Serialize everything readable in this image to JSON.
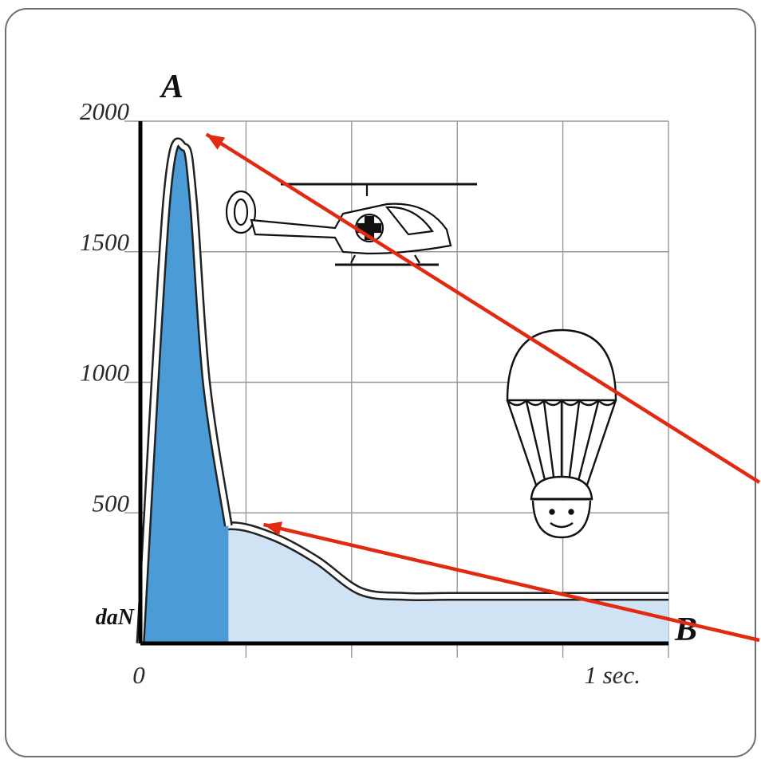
{
  "chart_data": {
    "type": "area",
    "x_unit": "sec.",
    "y_unit": "daN",
    "ylim": [
      0,
      2000
    ],
    "xlim": [
      0,
      1.2
    ],
    "y_ticks": [
      "2000",
      "1500",
      "1000",
      "500"
    ],
    "x_tick_labels": [
      "0",
      "1 sec."
    ],
    "axis_names": {
      "y_top": "A",
      "x_end": "B"
    },
    "grid": true,
    "series": [
      {
        "color": "#4a9bd6",
        "x": [
          0,
          0.06,
          0.1,
          0.12,
          0.15,
          0.2
        ],
        "y": [
          0,
          1700,
          1900,
          1700,
          1000,
          450
        ]
      },
      {
        "color": "#cfe3f4",
        "x": [
          0,
          0.05,
          0.1,
          0.2,
          0.3,
          0.4,
          0.5,
          0.6,
          0.7,
          0.8,
          0.9,
          1.0,
          1.1,
          1.2
        ],
        "y": [
          0,
          270,
          390,
          450,
          410,
          320,
          200,
          180,
          180,
          180,
          180,
          180,
          180,
          180
        ]
      }
    ],
    "annotations": [
      {
        "type": "arrow",
        "color": "#e02a12",
        "points_to": [
          0.15,
          1950
        ]
      },
      {
        "type": "arrow",
        "color": "#e02a12",
        "points_to": [
          0.28,
          455
        ]
      }
    ],
    "decorations": [
      "helicopter-icon",
      "parachutist-icon"
    ]
  }
}
